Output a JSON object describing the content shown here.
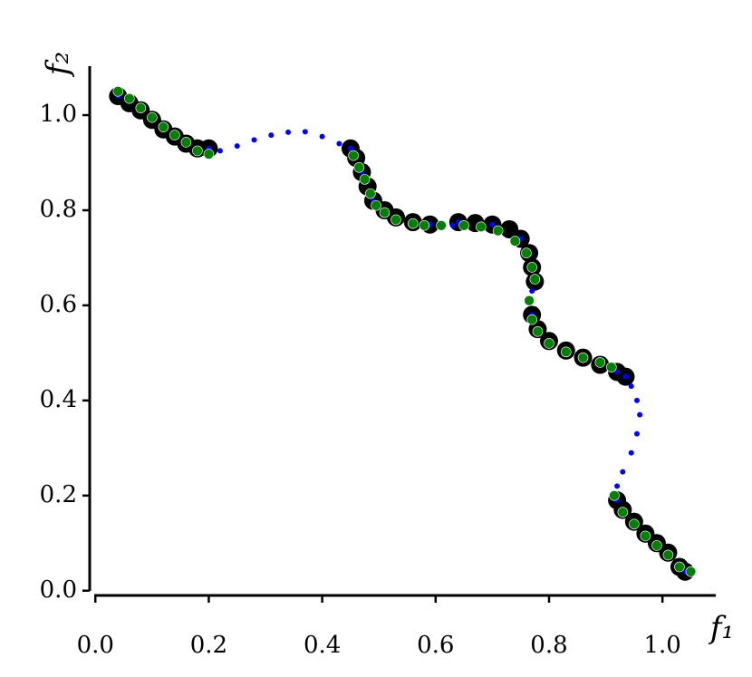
{
  "chart_data": {
    "type": "scatter",
    "x_label": "f₁",
    "y_label": "f₂",
    "xlim": [
      -0.01,
      1.094
    ],
    "ylim": [
      -0.01,
      1.103
    ],
    "xticks": [
      {
        "value": 0,
        "label": "0.0"
      },
      0.2,
      0.4,
      0.6,
      0.8,
      {
        "value": 1,
        "label": "1.0"
      }
    ],
    "yticks": [
      {
        "value": 0,
        "label": "0.0"
      },
      0.2,
      0.4,
      0.6,
      0.8,
      {
        "value": 1,
        "label": "1.0"
      }
    ],
    "series": [
      {
        "color": "#000000",
        "x": [
          0.04,
          0.06,
          0.08,
          0.1,
          0.12,
          0.14,
          0.16,
          0.18,
          0.2,
          0.45,
          0.46,
          0.47,
          0.48,
          0.49,
          0.51,
          0.53,
          0.56,
          0.59,
          0.64,
          0.67,
          0.7,
          0.73,
          0.75,
          0.765,
          0.77,
          0.775,
          0.77,
          0.78,
          0.8,
          0.83,
          0.86,
          0.89,
          0.92,
          0.935,
          0.92,
          0.93,
          0.95,
          0.97,
          0.99,
          1.01,
          1.03,
          1.04
        ],
        "y": [
          1.04,
          1.025,
          1.01,
          0.99,
          0.97,
          0.955,
          0.94,
          0.93,
          0.93,
          0.93,
          0.91,
          0.88,
          0.85,
          0.82,
          0.8,
          0.785,
          0.775,
          0.77,
          0.775,
          0.773,
          0.77,
          0.76,
          0.74,
          0.71,
          0.68,
          0.65,
          0.58,
          0.55,
          0.525,
          0.505,
          0.49,
          0.475,
          0.46,
          0.45,
          0.19,
          0.17,
          0.145,
          0.12,
          0.1,
          0.08,
          0.05,
          0.04
        ]
      },
      {
        "color": "#0000ff",
        "x": [
          0.04,
          0.08,
          0.12,
          0.16,
          0.2,
          0.22,
          0.25,
          0.28,
          0.31,
          0.34,
          0.37,
          0.4,
          0.43,
          0.45,
          0.47,
          0.49,
          0.53,
          0.59,
          0.61,
          0.63,
          0.64,
          0.7,
          0.75,
          0.77,
          0.775,
          0.77,
          0.77,
          0.8,
          0.86,
          0.92,
          0.935,
          0.945,
          0.955,
          0.96,
          0.955,
          0.945,
          0.93,
          0.92,
          0.92,
          0.95,
          0.99,
          1.04
        ],
        "y": [
          1.04,
          1.01,
          0.97,
          0.94,
          0.93,
          0.925,
          0.935,
          0.948,
          0.958,
          0.964,
          0.965,
          0.955,
          0.94,
          0.93,
          0.88,
          0.82,
          0.785,
          0.77,
          0.768,
          0.768,
          0.775,
          0.77,
          0.74,
          0.68,
          0.65,
          0.63,
          0.58,
          0.525,
          0.49,
          0.46,
          0.45,
          0.43,
          0.4,
          0.37,
          0.33,
          0.29,
          0.25,
          0.22,
          0.19,
          0.145,
          0.1,
          0.04
        ]
      },
      {
        "color": "#008000",
        "x": [
          0.04,
          0.06,
          0.08,
          0.1,
          0.12,
          0.14,
          0.16,
          0.18,
          0.2,
          0.455,
          0.465,
          0.475,
          0.485,
          0.495,
          0.51,
          0.53,
          0.56,
          0.58,
          0.61,
          0.65,
          0.68,
          0.71,
          0.74,
          0.76,
          0.77,
          0.775,
          0.765,
          0.77,
          0.78,
          0.8,
          0.83,
          0.86,
          0.89,
          0.91,
          0.915,
          0.93,
          0.95,
          0.97,
          0.99,
          1.01,
          1.03,
          1.05
        ],
        "y": [
          1.05,
          1.035,
          1.015,
          0.995,
          0.975,
          0.958,
          0.943,
          0.925,
          0.918,
          0.915,
          0.89,
          0.865,
          0.835,
          0.81,
          0.795,
          0.78,
          0.772,
          0.768,
          0.768,
          0.768,
          0.765,
          0.757,
          0.735,
          0.71,
          0.68,
          0.655,
          0.61,
          0.57,
          0.545,
          0.52,
          0.502,
          0.49,
          0.48,
          0.47,
          0.2,
          0.165,
          0.14,
          0.115,
          0.095,
          0.075,
          0.05,
          0.04
        ]
      }
    ]
  }
}
